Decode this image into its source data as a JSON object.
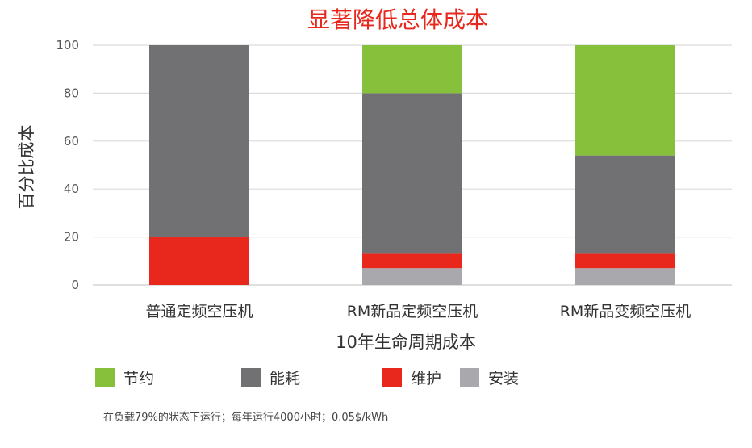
{
  "chart_data": {
    "type": "bar",
    "stacked": true,
    "title": "显著降低总体成本",
    "xlabel": "10年生命周期成本",
    "ylabel": "百分比成本",
    "ylim": [
      0,
      100
    ],
    "yticks": [
      0,
      20,
      40,
      60,
      80,
      100
    ],
    "grid": true,
    "legend_position": "bottom",
    "categories": [
      "普通定频空压机",
      "RM新品定频空压机",
      "RM新品变频空压机"
    ],
    "series": [
      {
        "name": "安装",
        "color": "#a9a9ad",
        "values": [
          0,
          7,
          7
        ]
      },
      {
        "name": "维护",
        "color": "#e8281c",
        "values": [
          20,
          6,
          6
        ]
      },
      {
        "name": "能耗",
        "color": "#717174",
        "values": [
          80,
          67,
          41
        ]
      },
      {
        "name": "节约",
        "color": "#87c13c",
        "values": [
          0,
          20,
          46
        ]
      }
    ],
    "legend_order": [
      "节约",
      "能耗",
      "维护",
      "安装"
    ],
    "footnote": "在负载79%的状态下运行；每年运行4000小时；0.05$/kWh"
  }
}
